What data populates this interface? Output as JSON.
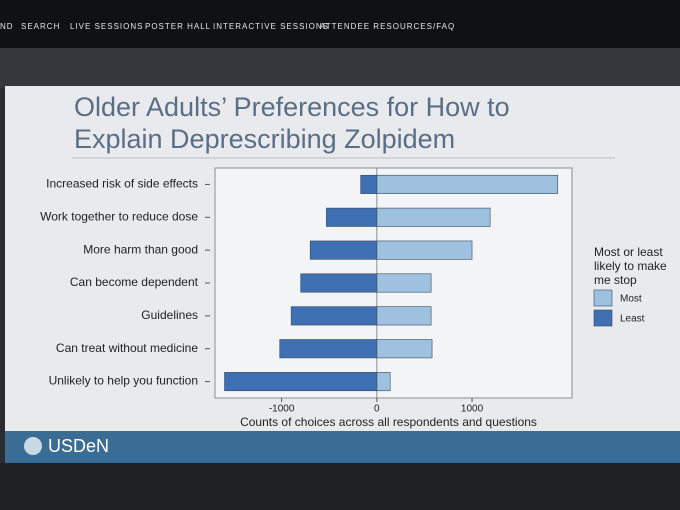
{
  "nav": [
    "ND",
    "SEARCH",
    "LIVE SESSIONS",
    "POSTER HALL",
    "INTERACTIVE SESSIONS",
    "ATTENDEE RESOURCES/FAQ"
  ],
  "logo": "USDeN",
  "chart_data": {
    "type": "diverging-bar",
    "title": [
      "Older Adults’ Preferences for How to",
      "Explain Deprescribing Zolpidem"
    ],
    "categories": [
      "Increased risk of side effects",
      "Work together to reduce dose",
      "More harm than good",
      "Can become dependent",
      "Guidelines",
      "Can treat without medicine",
      "Unlikely to help you function"
    ],
    "series": [
      {
        "name": "Most",
        "color": "#9dc1df",
        "values": [
          1900,
          1190,
          1000,
          570,
          570,
          580,
          140
        ]
      },
      {
        "name": "Least",
        "color": "#3f70b4",
        "values": [
          -170,
          -530,
          -700,
          -800,
          -900,
          -1020,
          -1600
        ]
      }
    ],
    "legend_title": [
      "Most or least",
      "likely to make",
      "me stop"
    ],
    "legend": "right",
    "xlabel": "Counts of choices across all respondents and questions",
    "xlim": [
      -1700,
      2050
    ],
    "xticks": [
      -1000,
      0,
      1000
    ]
  }
}
